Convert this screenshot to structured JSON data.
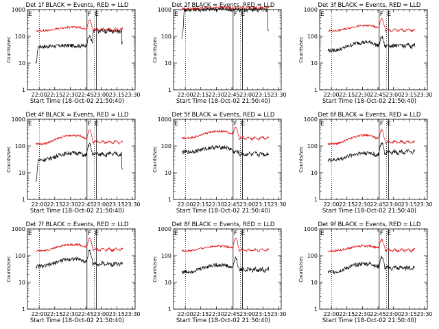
{
  "chart_data": [
    {
      "type": "line",
      "title": "Det 1f BLACK = Events, RED = LLD",
      "xlabel": "Start Time (18-Oct-02 21:50:40)",
      "ylabel": "Counts/sec",
      "x_ticks": [
        "22:00",
        "22:15",
        "22:30",
        "22:45",
        "23:00",
        "23:15",
        "23:30"
      ],
      "y_ticks": [
        "1",
        "10",
        "100",
        "1000"
      ],
      "y_scale": "log",
      "ylim": [
        1,
        1000
      ],
      "series": [
        {
          "name": "Events",
          "color": "#000000",
          "level": [
            42,
            45
          ],
          "peak": [
            100,
            160
          ],
          "drop": 2
        },
        {
          "name": "LLD",
          "color": "#dd0000",
          "level": [
            160,
            220
          ],
          "peak": [
            400,
            180
          ],
          "drop": 0
        }
      ],
      "markers": [
        "E",
        "F",
        "E"
      ]
    },
    {
      "type": "line",
      "title": "Det 2f BLACK = Events, RED = LLD",
      "xlabel": "Start Time (18-Oct-02 21:50:40)",
      "ylabel": "Counts/sec",
      "x_ticks": [
        "22:00",
        "22:15",
        "22:30",
        "22:45",
        "23:00",
        "23:15",
        "23:30"
      ],
      "y_ticks": [
        "1",
        "10",
        "100",
        "1000"
      ],
      "y_scale": "log",
      "ylim": [
        1,
        1000
      ],
      "series": [
        {
          "name": "Events",
          "color": "#000000",
          "level": [
            1000,
            1050
          ],
          "peak": [
            1000,
            1000
          ],
          "drop": 5
        },
        {
          "name": "LLD",
          "color": "#dd0000",
          "level": [
            1100,
            1200
          ],
          "peak": [
            1150,
            1180
          ],
          "drop": 0
        }
      ],
      "markers": [
        "E",
        "F",
        "E"
      ]
    },
    {
      "type": "line",
      "title": "Det 3f BLACK = Events, RED = LLD",
      "xlabel": "Start Time (18-Oct-02 21:50:40)",
      "ylabel": "Counts/sec",
      "x_ticks": [
        "22:00",
        "22:15",
        "22:30",
        "22:45",
        "23:00",
        "23:15",
        "23:30"
      ],
      "y_ticks": [
        "1",
        "10",
        "100",
        "1000"
      ],
      "y_scale": "log",
      "ylim": [
        1,
        1000
      ],
      "series": [
        {
          "name": "Events",
          "color": "#000000",
          "level": [
            30,
            60
          ],
          "peak": [
            95,
            45
          ],
          "drop": 0
        },
        {
          "name": "LLD",
          "color": "#dd0000",
          "level": [
            160,
            250
          ],
          "peak": [
            450,
            170
          ],
          "drop": 0
        }
      ],
      "markers": [
        "E",
        "F",
        "E"
      ]
    },
    {
      "type": "line",
      "title": "Det 4f BLACK = Events, RED = LLD",
      "xlabel": "Start Time (18-Oct-02 21:50:40)",
      "ylabel": "Counts/sec",
      "x_ticks": [
        "22:00",
        "22:15",
        "22:30",
        "22:45",
        "23:00",
        "23:15",
        "23:30"
      ],
      "y_ticks": [
        "1",
        "10",
        "100",
        "1000"
      ],
      "y_scale": "log",
      "ylim": [
        1,
        1000
      ],
      "series": [
        {
          "name": "Events",
          "color": "#000000",
          "level": [
            30,
            55
          ],
          "peak": [
            120,
            50
          ],
          "drop": 3
        },
        {
          "name": "LLD",
          "color": "#dd0000",
          "level": [
            120,
            250
          ],
          "peak": [
            400,
            140
          ],
          "drop": 0
        }
      ],
      "markers": [
        "E",
        "F",
        "E"
      ]
    },
    {
      "type": "line",
      "title": "Det 5f BLACK = Events, RED = LLD",
      "xlabel": "Start Time (18-Oct-02 21:50:40)",
      "ylabel": "Counts/sec",
      "x_ticks": [
        "22:00",
        "22:15",
        "22:30",
        "22:45",
        "23:00",
        "23:15",
        "23:30"
      ],
      "y_ticks": [
        "1",
        "10",
        "100",
        "1000"
      ],
      "y_scale": "log",
      "ylim": [
        1,
        1000
      ],
      "series": [
        {
          "name": "Events",
          "color": "#000000",
          "level": [
            60,
            90
          ],
          "peak": [
            60,
            50
          ],
          "drop": 0
        },
        {
          "name": "LLD",
          "color": "#dd0000",
          "level": [
            200,
            350
          ],
          "peak": [
            500,
            200
          ],
          "drop": 0
        }
      ],
      "markers": [
        "E",
        "F",
        "E"
      ]
    },
    {
      "type": "line",
      "title": "Det 6f BLACK = Events, RED = LLD",
      "xlabel": "Start Time (18-Oct-02 21:50:40)",
      "ylabel": "Counts/sec",
      "x_ticks": [
        "22:00",
        "22:15",
        "22:30",
        "22:45",
        "23:00",
        "23:15",
        "23:30"
      ],
      "y_ticks": [
        "1",
        "10",
        "100",
        "1000"
      ],
      "y_scale": "log",
      "ylim": [
        1,
        1000
      ],
      "series": [
        {
          "name": "Events",
          "color": "#000000",
          "level": [
            30,
            55
          ],
          "peak": [
            130,
            60
          ],
          "drop": 0
        },
        {
          "name": "LLD",
          "color": "#dd0000",
          "level": [
            120,
            250
          ],
          "peak": [
            400,
            140
          ],
          "drop": 0
        }
      ],
      "markers": [
        "E",
        "F",
        "E"
      ]
    },
    {
      "type": "line",
      "title": "Det 7f BLACK = Events, RED = LLD",
      "xlabel": "Start Time (18-Oct-02 21:50:40)",
      "ylabel": "Counts/sec",
      "x_ticks": [
        "22:00",
        "22:15",
        "22:30",
        "22:45",
        "23:00",
        "23:15",
        "23:30"
      ],
      "y_ticks": [
        "1",
        "10",
        "100",
        "1000"
      ],
      "y_scale": "log",
      "ylim": [
        1,
        1000
      ],
      "series": [
        {
          "name": "Events",
          "color": "#000000",
          "level": [
            40,
            75
          ],
          "peak": [
            150,
            50
          ],
          "drop": 0
        },
        {
          "name": "LLD",
          "color": "#dd0000",
          "level": [
            150,
            260
          ],
          "peak": [
            450,
            170
          ],
          "drop": 0
        }
      ],
      "markers": [
        "E",
        "F",
        "E"
      ]
    },
    {
      "type": "line",
      "title": "Det 8f BLACK = Events, RED = LLD",
      "xlabel": "Start Time (18-Oct-02 21:50:40)",
      "ylabel": "Counts/sec",
      "x_ticks": [
        "22:00",
        "22:15",
        "22:30",
        "22:45",
        "23:00",
        "23:15",
        "23:30"
      ],
      "y_ticks": [
        "1",
        "10",
        "100",
        "1000"
      ],
      "y_scale": "log",
      "ylim": [
        1,
        1000
      ],
      "series": [
        {
          "name": "Events",
          "color": "#000000",
          "level": [
            25,
            45
          ],
          "peak": [
            80,
            30
          ],
          "drop": 0
        },
        {
          "name": "LLD",
          "color": "#dd0000",
          "level": [
            150,
            230
          ],
          "peak": [
            450,
            160
          ],
          "drop": 0
        }
      ],
      "markers": [
        "E",
        "F",
        "E"
      ]
    },
    {
      "type": "line",
      "title": "Det 9f BLACK = Events, RED = LLD",
      "xlabel": "Start Time (18-Oct-02 21:50:40)",
      "ylabel": "Counts/sec",
      "x_ticks": [
        "22:00",
        "22:15",
        "22:30",
        "22:45",
        "23:00",
        "23:15",
        "23:30"
      ],
      "y_ticks": [
        "1",
        "10",
        "100",
        "1000"
      ],
      "y_scale": "log",
      "ylim": [
        1,
        1000
      ],
      "series": [
        {
          "name": "Events",
          "color": "#000000",
          "level": [
            25,
            50
          ],
          "peak": [
            90,
            35
          ],
          "drop": 0
        },
        {
          "name": "LLD",
          "color": "#dd0000",
          "level": [
            150,
            230
          ],
          "peak": [
            400,
            160
          ],
          "drop": 0
        }
      ],
      "markers": [
        "E",
        "F",
        "E"
      ]
    }
  ]
}
